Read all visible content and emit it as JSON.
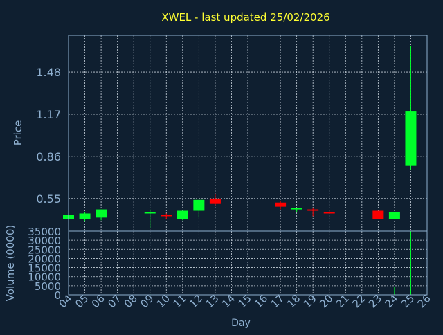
{
  "colors": {
    "background": "#0f1f30",
    "title": "#ffff33",
    "axis_text": "#8fb0d0",
    "grid": "#c8d2dc",
    "up": "#00ff2a",
    "down": "#ff0000"
  },
  "chart_data": {
    "type": "candlestick",
    "title": "XWEL - last updated 25/02/2026",
    "xlabel": "Day",
    "x_tick_labels": [
      "04",
      "05",
      "06",
      "07",
      "08",
      "09",
      "10",
      "11",
      "12",
      "13",
      "14",
      "15",
      "16",
      "17",
      "18",
      "19",
      "20",
      "21",
      "22",
      "23",
      "24",
      "25",
      "26"
    ],
    "price_panel": {
      "ylabel": "Price",
      "ylim": [
        0.31,
        1.75
      ],
      "y_ticks": [
        0.55,
        0.86,
        1.17,
        1.48
      ],
      "y_tick_labels": [
        "0.55",
        "0.86",
        "1.17",
        "1.48"
      ],
      "grid": true
    },
    "volume_panel": {
      "ylabel": "Volume (0000)",
      "ylim": [
        0,
        35000
      ],
      "y_ticks": [
        0,
        5000,
        10000,
        15000,
        20000,
        25000,
        30000,
        35000
      ],
      "y_tick_labels": [
        "0",
        "5000",
        "10000",
        "15000",
        "20000",
        "25000",
        "30000",
        "35000"
      ],
      "grid": true
    },
    "candles": [
      {
        "day": "04",
        "open": 0.4,
        "high": 0.43,
        "low": 0.4,
        "close": 0.43,
        "volume": 0
      },
      {
        "day": "05",
        "open": 0.4,
        "high": 0.45,
        "low": 0.38,
        "close": 0.44,
        "volume": 0
      },
      {
        "day": "06",
        "open": 0.41,
        "high": 0.47,
        "low": 0.39,
        "close": 0.47,
        "volume": 0
      },
      {
        "day": "09",
        "open": 0.44,
        "high": 0.47,
        "low": 0.33,
        "close": 0.45,
        "volume": 300
      },
      {
        "day": "10",
        "open": 0.43,
        "high": 0.44,
        "low": 0.4,
        "close": 0.42,
        "volume": 0
      },
      {
        "day": "11",
        "open": 0.4,
        "high": 0.46,
        "low": 0.39,
        "close": 0.46,
        "volume": 0
      },
      {
        "day": "12",
        "open": 0.46,
        "high": 0.54,
        "low": 0.41,
        "close": 0.54,
        "volume": 0
      },
      {
        "day": "13",
        "open": 0.55,
        "high": 0.58,
        "low": 0.5,
        "close": 0.51,
        "volume": 0
      },
      {
        "day": "17",
        "open": 0.52,
        "high": 0.53,
        "low": 0.47,
        "close": 0.49,
        "volume": 0
      },
      {
        "day": "18",
        "open": 0.47,
        "high": 0.48,
        "low": 0.45,
        "close": 0.48,
        "volume": 0
      },
      {
        "day": "19",
        "open": 0.47,
        "high": 0.48,
        "low": 0.42,
        "close": 0.46,
        "volume": 0
      },
      {
        "day": "20",
        "open": 0.45,
        "high": 0.46,
        "low": 0.44,
        "close": 0.44,
        "volume": 0
      },
      {
        "day": "23",
        "open": 0.46,
        "high": 0.46,
        "low": 0.4,
        "close": 0.4,
        "volume": 0
      },
      {
        "day": "24",
        "open": 0.4,
        "high": 0.45,
        "low": 0.4,
        "close": 0.45,
        "volume": 4500
      },
      {
        "day": "25",
        "open": 0.79,
        "high": 1.67,
        "low": 0.76,
        "close": 1.19,
        "volume": 35000
      }
    ]
  }
}
